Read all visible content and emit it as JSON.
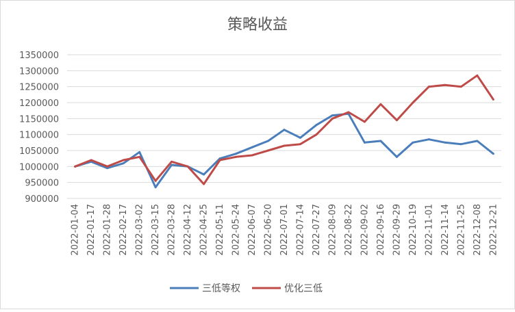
{
  "chart_data": {
    "type": "line",
    "title": "策略收益",
    "xlabel": "",
    "ylabel": "",
    "ylim": [
      900000,
      1350000
    ],
    "yticks": [
      900000,
      950000,
      1000000,
      1050000,
      1100000,
      1150000,
      1200000,
      1250000,
      1300000,
      1350000
    ],
    "ytick_labels": [
      "900000",
      "950000",
      "1000000",
      "1050000",
      "1100000",
      "1150000",
      "1200000",
      "1250000",
      "1300000",
      "1350000"
    ],
    "grid": true,
    "legend_position": "bottom",
    "categories": [
      "2022-01-04",
      "2022-01-17",
      "2022-01-28",
      "2022-02-17",
      "2022-03-02",
      "2022-03-15",
      "2022-03-28",
      "2022-04-12",
      "2022-04-25",
      "2022-05-11",
      "2022-05-24",
      "2022-06-07",
      "2022-06-20",
      "2022-07-01",
      "2022-07-14",
      "2022-07-27",
      "2022-08-09",
      "2022-08-22",
      "2022-09-02",
      "2022-09-16",
      "2022-09-29",
      "2022-10-19",
      "2022-11-01",
      "2022-11-14",
      "2022-11-25",
      "2022-12-08",
      "2022-12-21"
    ],
    "series": [
      {
        "name": "三低等权",
        "color": "#4a7ebb",
        "values": [
          1000000,
          1015000,
          995000,
          1010000,
          1045000,
          935000,
          1005000,
          1000000,
          975000,
          1025000,
          1040000,
          1060000,
          1080000,
          1115000,
          1090000,
          1130000,
          1160000,
          1165000,
          1075000,
          1080000,
          1030000,
          1075000,
          1085000,
          1075000,
          1070000,
          1080000,
          1040000
        ]
      },
      {
        "name": "优化三低",
        "color": "#be4b48",
        "values": [
          1000000,
          1020000,
          1000000,
          1020000,
          1030000,
          955000,
          1015000,
          1000000,
          945000,
          1020000,
          1030000,
          1035000,
          1050000,
          1065000,
          1070000,
          1100000,
          1150000,
          1170000,
          1140000,
          1195000,
          1145000,
          1200000,
          1250000,
          1255000,
          1250000,
          1285000,
          1210000
        ]
      }
    ]
  }
}
